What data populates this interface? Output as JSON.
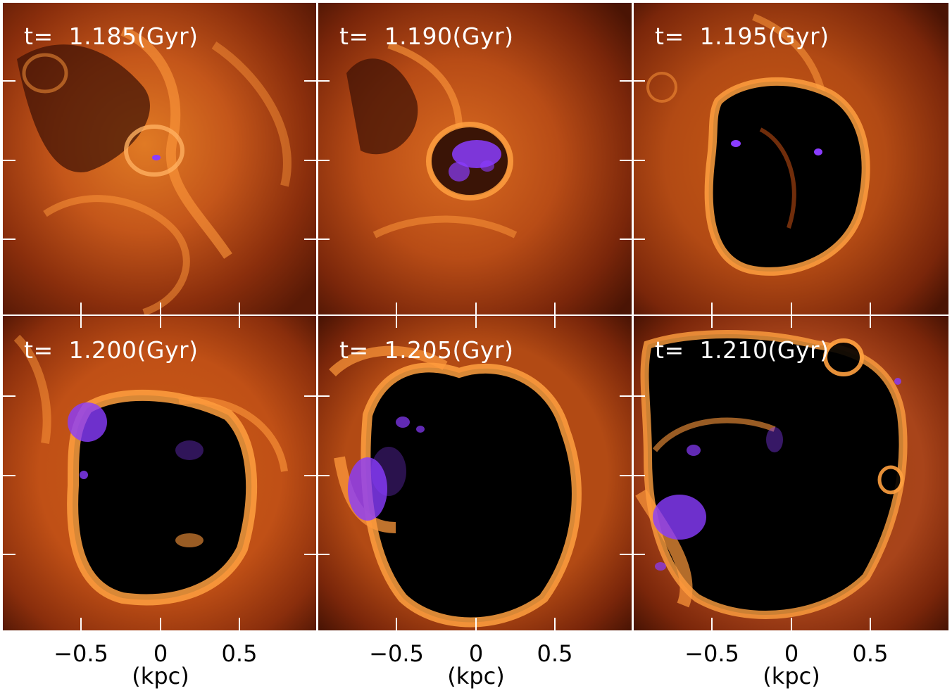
{
  "figure": {
    "panels": [
      {
        "id": "p1",
        "time_label": "t=  1.185(Gyr)"
      },
      {
        "id": "p2",
        "time_label": "t=  1.190(Gyr)"
      },
      {
        "id": "p3",
        "time_label": "t=  1.195(Gyr)"
      },
      {
        "id": "p4",
        "time_label": "t=  1.200(Gyr)"
      },
      {
        "id": "p5",
        "time_label": "t=  1.205(Gyr)"
      },
      {
        "id": "p6",
        "time_label": "t=  1.210(Gyr)"
      }
    ],
    "x_tick_labels": [
      "−0.5",
      "0",
      "0.5"
    ],
    "x_unit_label": "(kpc)",
    "colors": {
      "gas_bright": "#ff9a3c",
      "gas_mid": "#c85a14",
      "gas_dark": "#5a1a06",
      "void": "#000000",
      "stars": "#8a3cff",
      "frame": "#ffffff"
    }
  }
}
